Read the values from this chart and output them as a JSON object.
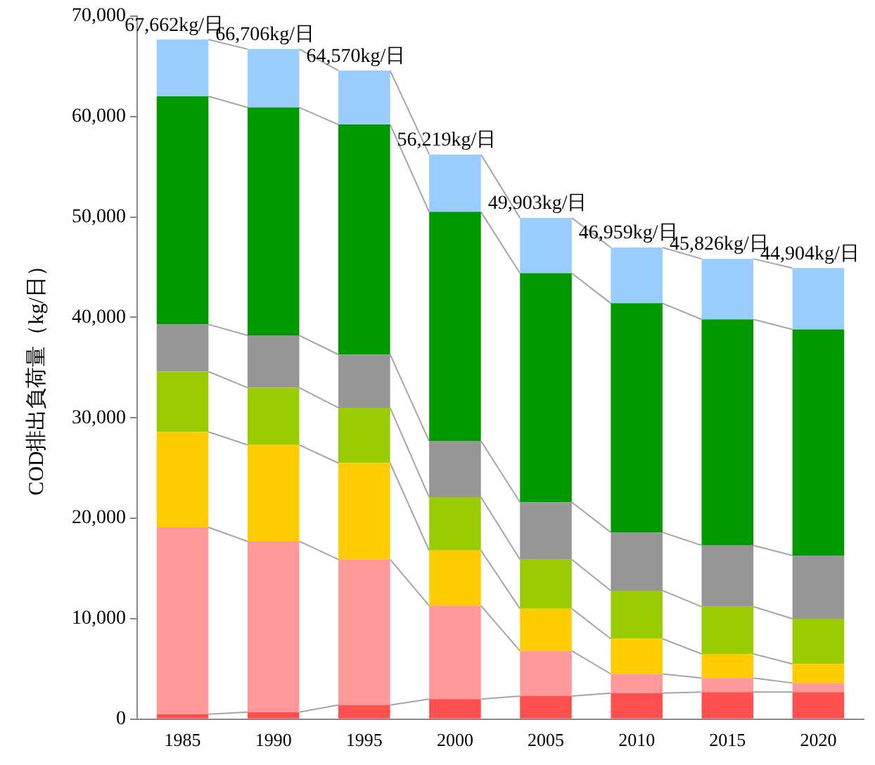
{
  "chart_data": {
    "type": "bar",
    "stacked": true,
    "ylabel": "COD排出負荷量（kg/日）",
    "categories": [
      "1985",
      "1990",
      "1995",
      "2000",
      "2005",
      "2010",
      "2015",
      "2020"
    ],
    "series": [
      {
        "color": "#ff5050",
        "values": [
          500,
          700,
          1400,
          2000,
          2300,
          2600,
          2700,
          2700
        ]
      },
      {
        "color": "#ff9999",
        "values": [
          18600,
          17000,
          14500,
          9300,
          4500,
          1900,
          1400,
          900
        ]
      },
      {
        "color": "#ffcc00",
        "values": [
          9500,
          9600,
          9600,
          5500,
          4200,
          3500,
          2400,
          1900
        ]
      },
      {
        "color": "#99cc00",
        "values": [
          6000,
          5700,
          5500,
          5300,
          4900,
          4800,
          4700,
          4500
        ]
      },
      {
        "color": "#969696",
        "values": [
          4700,
          5200,
          5300,
          5600,
          5700,
          5800,
          6100,
          6300
        ]
      },
      {
        "color": "#009900",
        "values": [
          22700,
          22700,
          22900,
          22800,
          22800,
          22800,
          22500,
          22500
        ]
      },
      {
        "color": "#99ccff",
        "values": [
          5662,
          5806,
          5370,
          5719,
          5503,
          5559,
          6026,
          6104
        ]
      }
    ],
    "totals": [
      "67,662kg/日",
      "66,706kg/日",
      "64,570kg/日",
      "56,219kg/日",
      "49,903kg/日",
      "46,959kg/日",
      "45,826kg/日",
      "44,904kg/日"
    ],
    "ylim": [
      0,
      70000
    ],
    "yticks": [
      0,
      {
        "value": 10000,
        "label": "10,000"
      },
      {
        "value": 20000,
        "label": "20,000"
      },
      {
        "value": 30000,
        "label": "30,000"
      },
      {
        "value": 40000,
        "label": "40,000"
      },
      {
        "value": 50000,
        "label": "50,000"
      },
      {
        "value": 60000,
        "label": "60,000"
      },
      {
        "value": 70000,
        "label": "70,000"
      }
    ],
    "grid": false,
    "legend": false
  }
}
